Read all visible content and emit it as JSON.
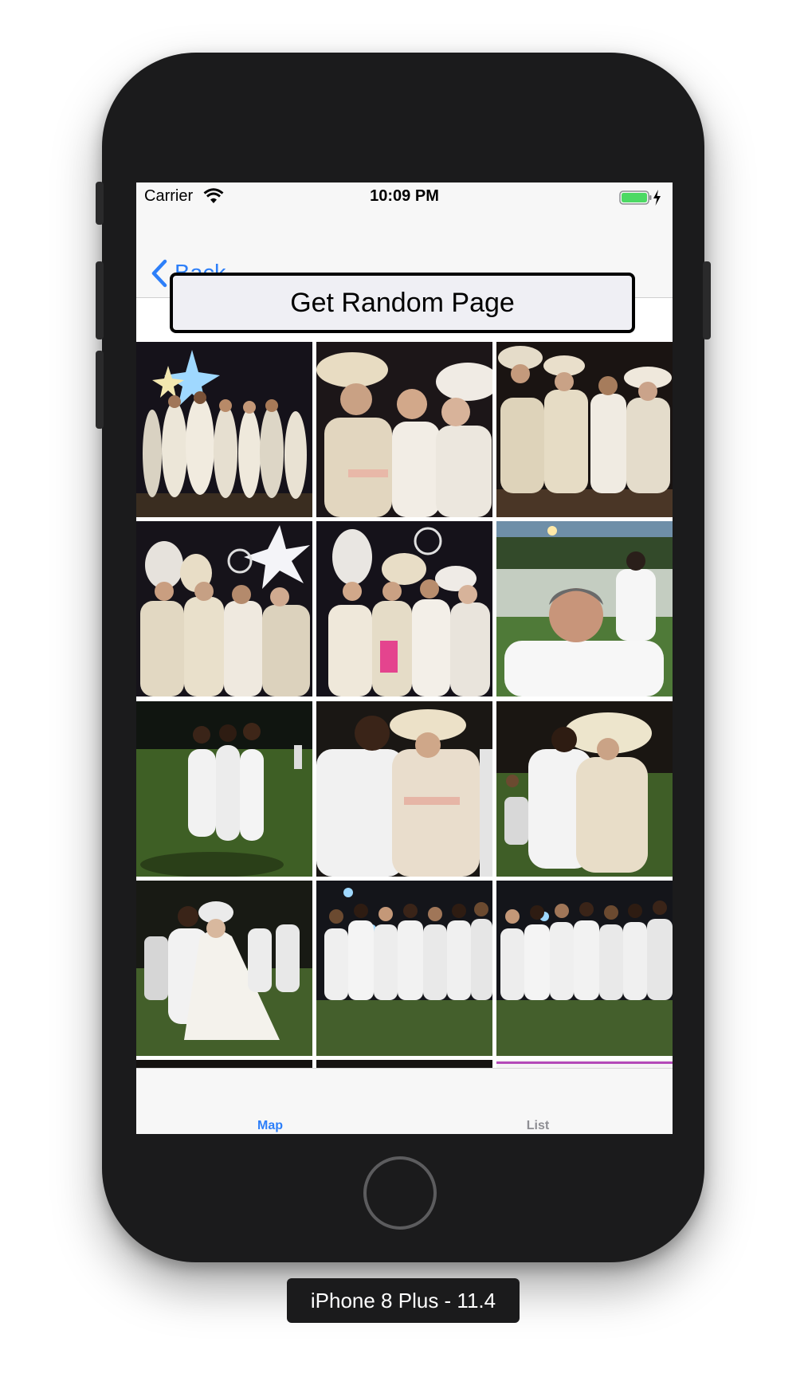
{
  "status_bar": {
    "carrier": "Carrier",
    "time": "10:09 PM",
    "battery_color": "#4cd964"
  },
  "nav": {
    "back_label": "Back",
    "accent_color": "#2d7ff9"
  },
  "random_button": {
    "label": "Get Random Page"
  },
  "photos": [
    {
      "scene": "night-party-group-with-star-lights"
    },
    {
      "scene": "women-in-wide-brim-white-hats"
    },
    {
      "scene": "women-in-cream-dresses-and-hats"
    },
    {
      "scene": "group-with-tall-white-headdresses"
    },
    {
      "scene": "group-with-tall-white-headdresses-closeup"
    },
    {
      "scene": "man-selfie-at-outdoor-dinner"
    },
    {
      "scene": "three-women-on-grass-at-night"
    },
    {
      "scene": "man-and-woman-in-white-hat"
    },
    {
      "scene": "couple-embracing-on-lawn"
    },
    {
      "scene": "couple-in-wedding-dress-on-lawn"
    },
    {
      "scene": "crowd-of-women-in-white-dresses"
    },
    {
      "scene": "crowd-of-women-in-white-dresses-2"
    }
  ],
  "tabs": [
    {
      "label": "Map",
      "active": true
    },
    {
      "label": "List",
      "active": false
    }
  ],
  "device": {
    "label": "iPhone 8 Plus - 11.4"
  }
}
